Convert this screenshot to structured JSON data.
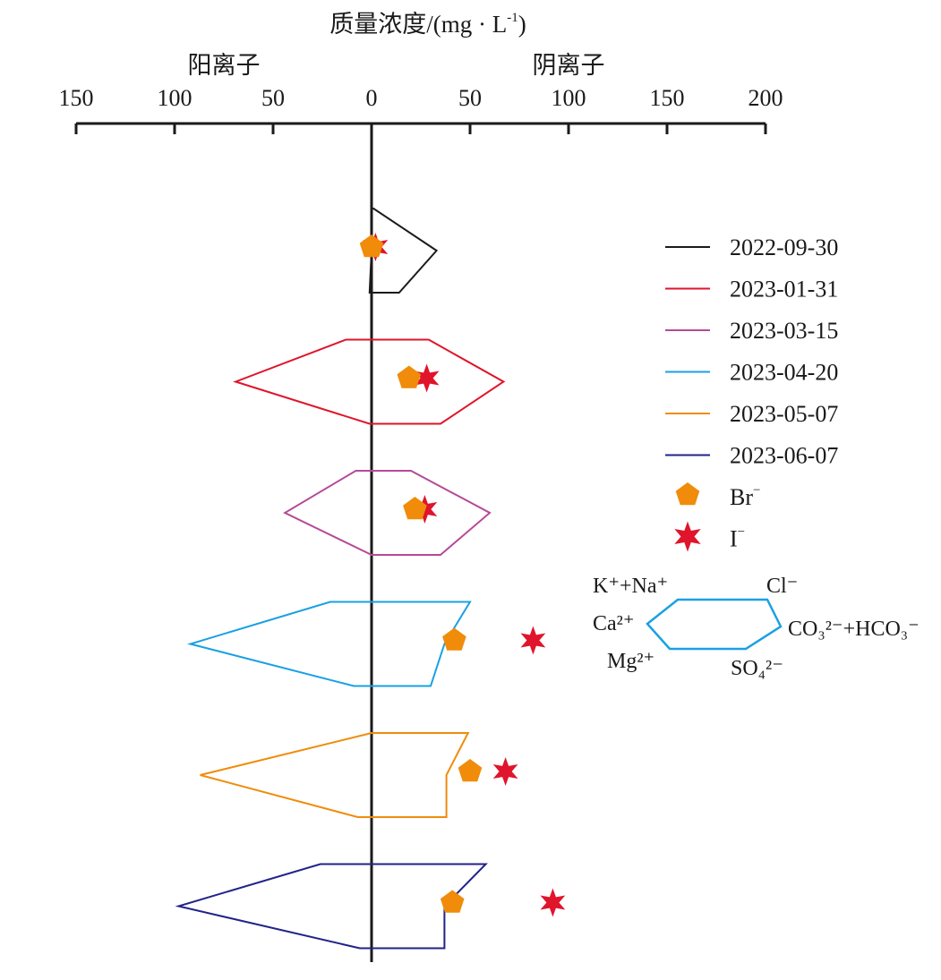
{
  "chart_data": {
    "type": "stiff-diagram",
    "title": "质量浓度/(mg · L",
    "title_sup": "-1",
    "title_close": ")",
    "left_label": "阳离子",
    "right_label": "阴离子",
    "xlim": [
      -150,
      200
    ],
    "ticks": [
      -150,
      -100,
      -50,
      0,
      50,
      100,
      150,
      200
    ],
    "tick_labels": [
      "150",
      "100",
      "50",
      "0",
      "50",
      "100",
      "150",
      "200"
    ],
    "series": [
      {
        "name": "2022-09-30",
        "color": "#1a1a1a",
        "cations": {
          "Na_K": 0,
          "Ca": 0,
          "Mg": 1
        },
        "anions": {
          "Cl": 1,
          "HCO3_CO3": 33,
          "SO4": 14
        },
        "Br": 0,
        "I": 2
      },
      {
        "name": "2023-01-31",
        "color": "#e0142b",
        "cations": {
          "Na_K": 13,
          "Ca": 69,
          "Mg": 1
        },
        "anions": {
          "Cl": 29,
          "HCO3_CO3": 67,
          "SO4": 35
        },
        "Br": 19,
        "I": 28
      },
      {
        "name": "2023-03-15",
        "color": "#b54a96",
        "cations": {
          "Na_K": 8,
          "Ca": 44,
          "Mg": 0
        },
        "anions": {
          "Cl": 20,
          "HCO3_CO3": 60,
          "SO4": 35
        },
        "Br": 22,
        "I": 27
      },
      {
        "name": "2023-04-20",
        "color": "#1aa0e3",
        "cations": {
          "Na_K": 21,
          "Ca": 92,
          "Mg": 9
        },
        "anions": {
          "Cl": 50,
          "HCO3_CO3": 37,
          "SO4": 30
        },
        "Br": 42,
        "I": 82
      },
      {
        "name": "2023-05-07",
        "color": "#f08c0a",
        "cations": {
          "Na_K": 0,
          "Ca": 87,
          "Mg": 7
        },
        "anions": {
          "Cl": 49,
          "HCO3_CO3": 38,
          "SO4": 38
        },
        "Br": 50,
        "I": 68
      },
      {
        "name": "2023-06-07",
        "color": "#22228a",
        "cations": {
          "Na_K": 26,
          "Ca": 98,
          "Mg": 6
        },
        "anions": {
          "Cl": 58,
          "HCO3_CO3": 37,
          "SO4": 37
        },
        "Br": 41,
        "I": 92
      }
    ],
    "markers": {
      "Br": {
        "label": "Br",
        "sup": "−",
        "color": "#f08c0a"
      },
      "I": {
        "label": "I",
        "sup": "−",
        "color": "#e0142b"
      }
    },
    "key_diagram": {
      "color": "#1aa0e3",
      "ion_labels": {
        "K_Na": "K⁺+Na⁺",
        "Ca": "Ca²⁺",
        "Mg": "Mg²⁺",
        "Cl": "Cl⁻",
        "HCO3": "CO₃²⁻+HCO₃⁻",
        "SO4": "SO₄²⁻"
      }
    }
  }
}
